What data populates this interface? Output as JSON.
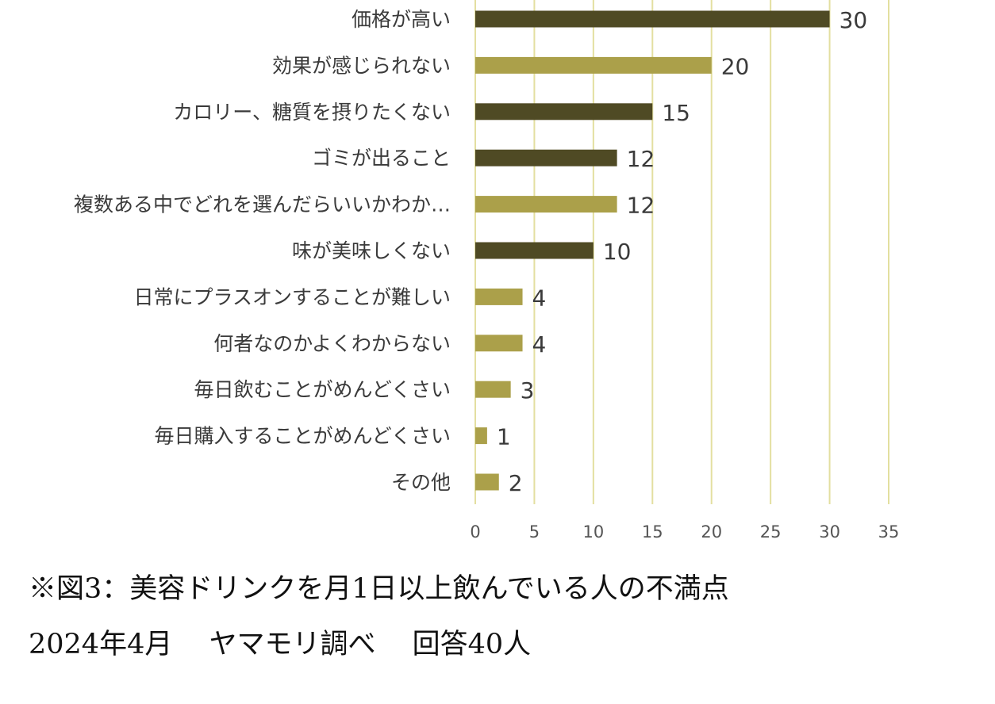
{
  "chart_data": {
    "type": "bar",
    "orientation": "horizontal",
    "categories": [
      "価格が高い",
      "効果が感じられない",
      "カロリー、糖質を摂りたくない",
      "ゴミが出ること",
      "複数ある中でどれを選んだらいいかわか…",
      "味が美味しくない",
      "日常にプラスオンすることが難しい",
      "何者なのかよくわからない",
      "毎日飲むことがめんどくさい",
      "毎日購入することがめんどくさい",
      "その他"
    ],
    "values": [
      30,
      20,
      15,
      12,
      12,
      10,
      4,
      4,
      3,
      1,
      2
    ],
    "value_labels": [
      "30",
      "20",
      "15",
      "12",
      "12",
      "10",
      "4",
      "4",
      "3",
      "1",
      "2"
    ],
    "bar_colors": [
      "#4f4a24",
      "#aba04a",
      "#4f4a24",
      "#4f4a24",
      "#aba04a",
      "#4f4a24",
      "#aba04a",
      "#aba04a",
      "#aba04a",
      "#aba04a",
      "#aba04a"
    ],
    "xlim": [
      0,
      35
    ],
    "xticks": [
      "0",
      "5",
      "10",
      "15",
      "20",
      "25",
      "30",
      "35"
    ],
    "grid": "vertical",
    "grid_color": "#e3dfa0",
    "legend": "none"
  },
  "caption": {
    "line1": "※図3：美容ドリンクを月1日以上飲んでいる人の不満点",
    "line2": "2024年4月　 ヤマモリ調べ　 回答40人"
  }
}
